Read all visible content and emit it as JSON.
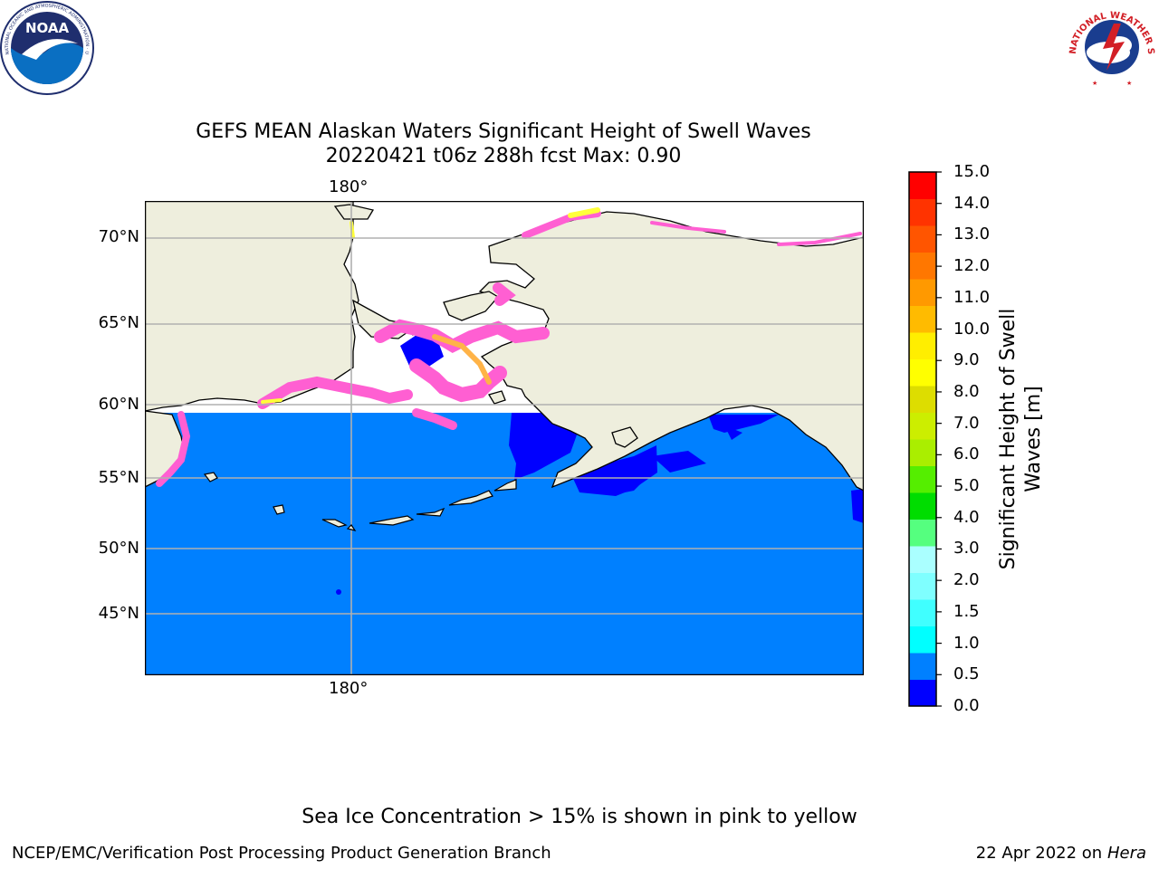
{
  "logos": {
    "noaa": {
      "center_text": "NOAA",
      "ring_text": "NATIONAL OCEANIC AND ATMOSPHERIC ADMINISTRATION · U.S. DEPARTMENT OF COMMERCE",
      "colors": {
        "ring": "#ffffff",
        "top": "#1f2e6e",
        "bottom": "#0a6fc2",
        "gull": "#ffffff"
      }
    },
    "nws": {
      "ring_text": "NATIONAL WEATHER SERVICE",
      "colors": {
        "ring_text": "#d21f26",
        "inner": "#1a3d8f",
        "cloud": "#ffffff",
        "bolt": "#d21f26"
      }
    }
  },
  "title": {
    "line1": "GEFS MEAN Alaskan Waters Significant Height of Swell Waves",
    "line2": "20220421 t06z 288h fcst   Max: 0.90"
  },
  "map": {
    "latitude_labels": [
      "70°N",
      "65°N",
      "60°N",
      "55°N",
      "50°N",
      "45°N"
    ],
    "longitude_label_top": "180°",
    "longitude_label_bottom": "180°",
    "colors": {
      "land": "#eeeedd",
      "ocean_0_0p5": "#0000ff",
      "ocean_0p5_1p0": "#0080ff",
      "ice_pink": "#ff5fd2",
      "ice_orange": "#ffb347",
      "ice_yellow": "#ffff3a",
      "gridline": "#b0b0b0",
      "coastline": "#000000"
    }
  },
  "colorbar": {
    "label": "Significant Height of Swell Waves [m]",
    "ticks": [
      "15.0",
      "14.0",
      "13.0",
      "12.0",
      "11.0",
      "10.0",
      "9.0",
      "8.0",
      "7.0",
      "6.0",
      "5.0",
      "4.0",
      "3.0",
      "2.0",
      "1.5",
      "1.0",
      "0.5",
      "0.0"
    ],
    "colors_bottom_to_top": [
      "#0000ff",
      "#0080ff",
      "#00ffff",
      "#40ffff",
      "#7fffff",
      "#aaffff",
      "#55ff7f",
      "#00dd00",
      "#55ee00",
      "#aaee00",
      "#ccee00",
      "#dddd00",
      "#ffff00",
      "#ffee00",
      "#ffbb00",
      "#ff9900",
      "#ff7700",
      "#ff5500",
      "#ff3300",
      "#ff0000"
    ]
  },
  "footer": {
    "note": "Sea Ice Concentration > 15% is shown in pink to yellow",
    "left": "NCEP/EMC/Verification Post Processing Product Generation Branch",
    "date_prefix": "22 Apr 2022 on ",
    "machine": "Hera"
  }
}
